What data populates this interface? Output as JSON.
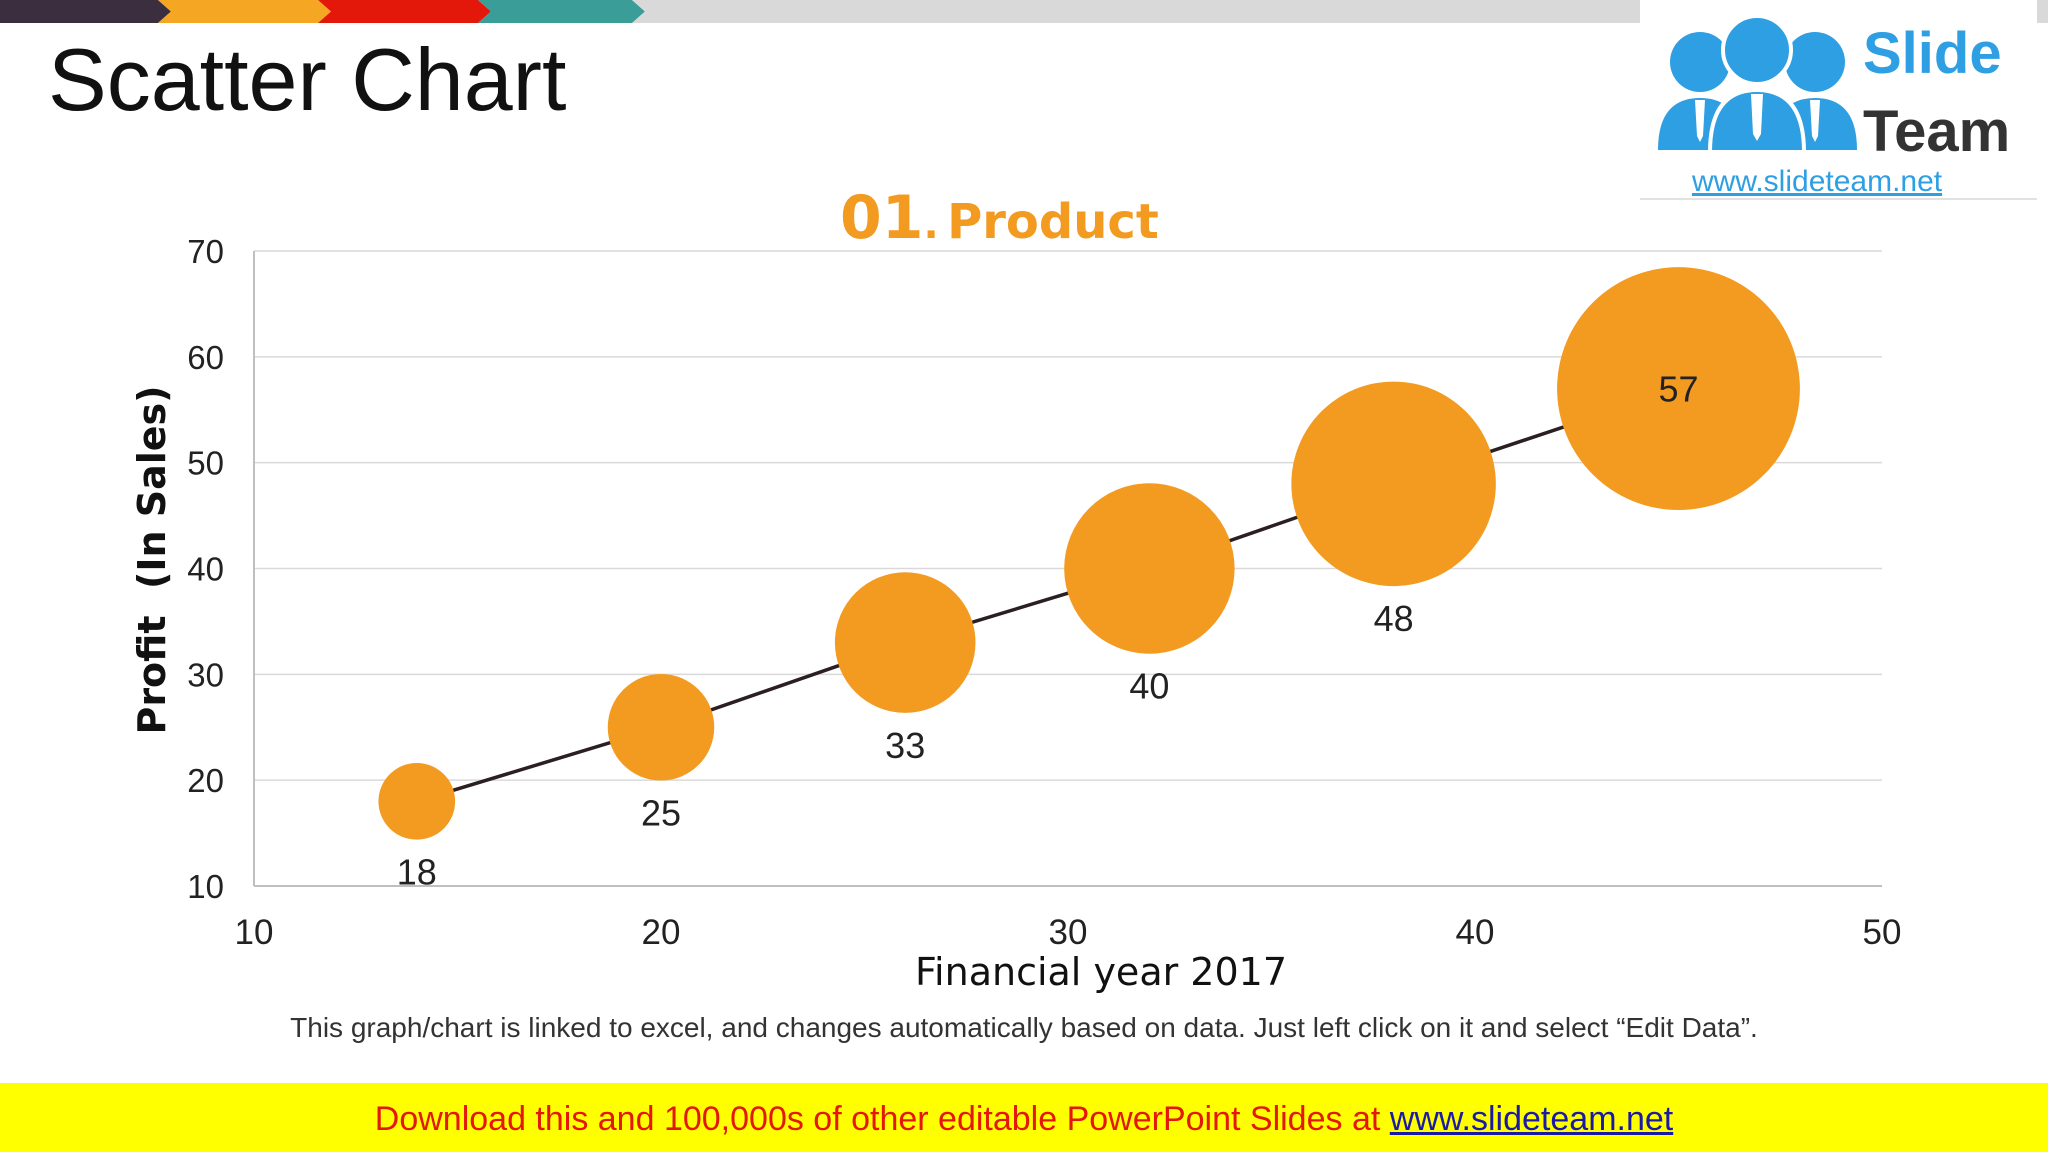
{
  "slide": {
    "title": "Scatter Chart",
    "caption": "This graph/chart is linked to excel, and changes automatically based on data. Just left click on it and select “Edit Data”."
  },
  "logo": {
    "word1": "Slide",
    "word2": "Team",
    "url": "www.slideteam.net"
  },
  "chart_title": {
    "number": "01",
    "separator": ".",
    "label": "Product"
  },
  "colors": {
    "bubble": "#f29b20",
    "line": "#2b1f22",
    "gridline": "#d9d9d9",
    "title_accent": "#f29b20",
    "stripe": [
      "#3b2e3f",
      "#f5a623",
      "#e3170a",
      "#3a9d98",
      "#d9d9d9"
    ],
    "footer_background": "#ffff00",
    "footer_text": "#e3170a",
    "logo_blue": "#2e9fe3"
  },
  "chart_data": {
    "type": "scatter",
    "xlabel": "Financial year 2017",
    "ylabel": "Profit  (In Sales)",
    "xlim": [
      10,
      50
    ],
    "ylim": [
      10,
      70
    ],
    "xticks": [
      "10",
      "20",
      "30",
      "40",
      "50"
    ],
    "yticks": [
      "70",
      "60",
      "50",
      "40",
      "30",
      "20",
      "10"
    ],
    "grid": true,
    "connected_line": true,
    "series": [
      {
        "x": [
          14,
          20,
          26,
          32,
          38,
          45
        ],
        "y": [
          18,
          25,
          33,
          40,
          48,
          57
        ],
        "size": [
          18,
          25,
          33,
          40,
          48,
          57
        ],
        "labels": [
          "18",
          "25",
          "33",
          "40",
          "48",
          "57"
        ]
      }
    ]
  },
  "footer": {
    "text": "Download this and 100,000s of other editable PowerPoint Slides at ",
    "link": "www.slideteam.net"
  }
}
